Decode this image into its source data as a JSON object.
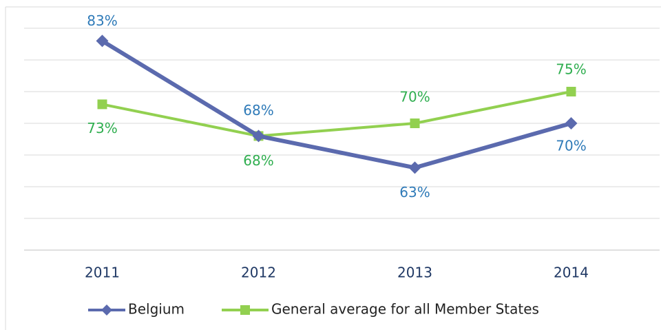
{
  "chart_data": {
    "type": "line",
    "categories": [
      "2011",
      "2012",
      "2013",
      "2014"
    ],
    "series": [
      {
        "name": "Belgium",
        "color": "#5b6aae",
        "label_color": "#2e7ab8",
        "marker": "diamond",
        "values": [
          83,
          68,
          63,
          70
        ],
        "value_labels": [
          "83%",
          "68%",
          "63%",
          "70%"
        ]
      },
      {
        "name": "General average for all Member States",
        "color": "#92d050",
        "label_color": "#2fae4f",
        "marker": "square",
        "values": [
          73,
          68,
          70,
          75
        ],
        "value_labels": [
          "73%",
          "68%",
          "70%",
          "75%"
        ]
      }
    ],
    "ylim": [
      50,
      85
    ],
    "yticks": [
      50,
      55,
      60,
      65,
      70,
      75,
      80,
      85
    ],
    "grid": true,
    "legend": "bottom"
  }
}
